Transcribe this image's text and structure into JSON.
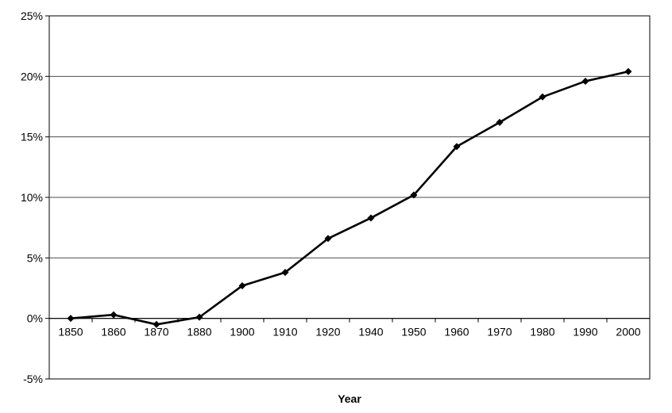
{
  "chart": {
    "xlabel": "Year"
  },
  "chart_data": {
    "type": "line",
    "title": "",
    "xlabel": "Year",
    "ylabel": "",
    "categories": [
      "1850",
      "1860",
      "1870",
      "1880",
      "1900",
      "1910",
      "1920",
      "1940",
      "1950",
      "1960",
      "1970",
      "1980",
      "1990",
      "2000"
    ],
    "values": [
      0.0,
      0.3,
      -0.5,
      0.1,
      2.7,
      3.8,
      6.6,
      8.3,
      10.2,
      14.2,
      16.2,
      18.3,
      19.6,
      20.4
    ],
    "ylim": [
      -5,
      25
    ],
    "ytick_step": 5,
    "ytick_labels": [
      "-5%",
      "0%",
      "5%",
      "10%",
      "15%",
      "20%",
      "25%"
    ],
    "ytick_format": "percent",
    "grid": true,
    "legend": false,
    "marker": "diamond"
  },
  "colors": {
    "line": "#000000",
    "marker": "#000000",
    "gridline": "#4d4d4d",
    "axis": "#000000",
    "plot_border": "#000000",
    "background": "#ffffff",
    "text": "#000000"
  }
}
